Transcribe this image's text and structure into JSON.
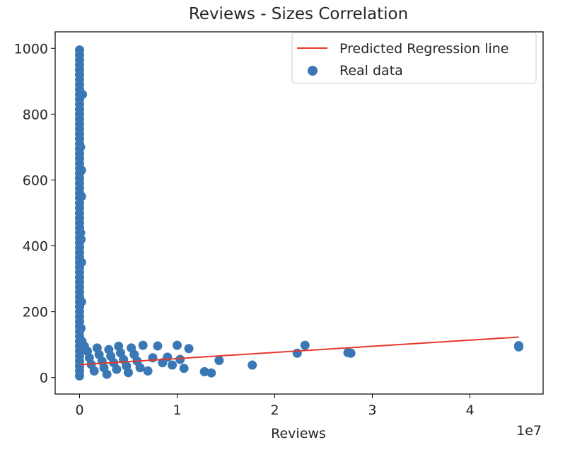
{
  "chart_data": {
    "type": "scatter",
    "title": "Reviews - Sizes Correlation",
    "xlabel": "Reviews",
    "ylabel": "",
    "x_offset_text": "1e7",
    "xlim": [
      -2500000,
      47500000
    ],
    "ylim": [
      -50,
      1050
    ],
    "x_ticks": [
      {
        "value": 0,
        "label": "0"
      },
      {
        "value": 10000000,
        "label": "1"
      },
      {
        "value": 20000000,
        "label": "2"
      },
      {
        "value": 30000000,
        "label": "3"
      },
      {
        "value": 40000000,
        "label": "4"
      }
    ],
    "y_ticks": [
      {
        "value": 0,
        "label": "0"
      },
      {
        "value": 200,
        "label": "200"
      },
      {
        "value": 400,
        "label": "400"
      },
      {
        "value": 600,
        "label": "600"
      },
      {
        "value": 800,
        "label": "800"
      },
      {
        "value": 1000,
        "label": "1000"
      }
    ],
    "grid": false,
    "legend": {
      "position": "top-right",
      "entries": [
        "Predicted Regression line",
        "Real data"
      ]
    },
    "colors": {
      "regression_line": "#e8372c",
      "points": "#3a78b5"
    },
    "series": [
      {
        "name": "Real data",
        "type": "scatter",
        "points": [
          [
            0,
            995
          ],
          [
            0,
            980
          ],
          [
            0,
            965
          ],
          [
            0,
            950
          ],
          [
            0,
            935
          ],
          [
            0,
            920
          ],
          [
            0,
            905
          ],
          [
            0,
            890
          ],
          [
            0,
            875
          ],
          [
            0,
            860
          ],
          [
            0,
            845
          ],
          [
            0,
            830
          ],
          [
            0,
            815
          ],
          [
            0,
            800
          ],
          [
            0,
            785
          ],
          [
            0,
            770
          ],
          [
            0,
            755
          ],
          [
            0,
            740
          ],
          [
            0,
            725
          ],
          [
            0,
            710
          ],
          [
            0,
            695
          ],
          [
            0,
            680
          ],
          [
            0,
            665
          ],
          [
            0,
            650
          ],
          [
            0,
            635
          ],
          [
            0,
            620
          ],
          [
            0,
            605
          ],
          [
            0,
            590
          ],
          [
            0,
            575
          ],
          [
            0,
            560
          ],
          [
            0,
            545
          ],
          [
            0,
            530
          ],
          [
            0,
            515
          ],
          [
            0,
            500
          ],
          [
            0,
            485
          ],
          [
            0,
            470
          ],
          [
            0,
            455
          ],
          [
            0,
            440
          ],
          [
            0,
            425
          ],
          [
            0,
            410
          ],
          [
            0,
            395
          ],
          [
            0,
            380
          ],
          [
            0,
            365
          ],
          [
            0,
            350
          ],
          [
            0,
            335
          ],
          [
            0,
            320
          ],
          [
            0,
            305
          ],
          [
            0,
            290
          ],
          [
            0,
            275
          ],
          [
            0,
            260
          ],
          [
            0,
            245
          ],
          [
            0,
            230
          ],
          [
            0,
            215
          ],
          [
            0,
            200
          ],
          [
            0,
            185
          ],
          [
            0,
            170
          ],
          [
            0,
            155
          ],
          [
            0,
            140
          ],
          [
            0,
            125
          ],
          [
            0,
            110
          ],
          [
            0,
            95
          ],
          [
            0,
            80
          ],
          [
            0,
            65
          ],
          [
            0,
            50
          ],
          [
            0,
            35
          ],
          [
            0,
            20
          ],
          [
            0,
            5
          ],
          [
            300000,
            860
          ],
          [
            100000,
            700
          ],
          [
            200000,
            630
          ],
          [
            200000,
            550
          ],
          [
            150000,
            420
          ],
          [
            100000,
            440
          ],
          [
            200000,
            350
          ],
          [
            200000,
            230
          ],
          [
            150000,
            150
          ],
          [
            250000,
            110
          ],
          [
            500000,
            95
          ],
          [
            800000,
            80
          ],
          [
            1000000,
            60
          ],
          [
            1200000,
            40
          ],
          [
            1500000,
            20
          ],
          [
            1800000,
            90
          ],
          [
            2000000,
            70
          ],
          [
            2300000,
            50
          ],
          [
            2500000,
            30
          ],
          [
            2800000,
            10
          ],
          [
            3000000,
            85
          ],
          [
            3200000,
            65
          ],
          [
            3500000,
            45
          ],
          [
            3800000,
            25
          ],
          [
            4000000,
            95
          ],
          [
            4200000,
            75
          ],
          [
            4500000,
            55
          ],
          [
            4800000,
            35
          ],
          [
            5000000,
            15
          ],
          [
            5300000,
            90
          ],
          [
            5600000,
            70
          ],
          [
            5900000,
            50
          ],
          [
            6200000,
            30
          ],
          [
            6500000,
            98
          ],
          [
            7000000,
            20
          ],
          [
            7500000,
            60
          ],
          [
            8000000,
            96
          ],
          [
            8500000,
            45
          ],
          [
            9000000,
            62
          ],
          [
            9500000,
            38
          ],
          [
            10000000,
            98
          ],
          [
            10300000,
            55
          ],
          [
            10700000,
            28
          ],
          [
            11200000,
            88
          ],
          [
            12800000,
            18
          ],
          [
            13500000,
            14
          ],
          [
            14300000,
            52
          ],
          [
            17700000,
            38
          ],
          [
            22300000,
            74
          ],
          [
            23100000,
            98
          ],
          [
            27500000,
            76
          ],
          [
            27800000,
            74
          ],
          [
            45000000,
            97
          ],
          [
            45000000,
            93
          ]
        ]
      },
      {
        "name": "Predicted Regression line",
        "type": "line",
        "x": [
          0,
          45000000
        ],
        "y": [
          39,
          123
        ]
      }
    ]
  }
}
